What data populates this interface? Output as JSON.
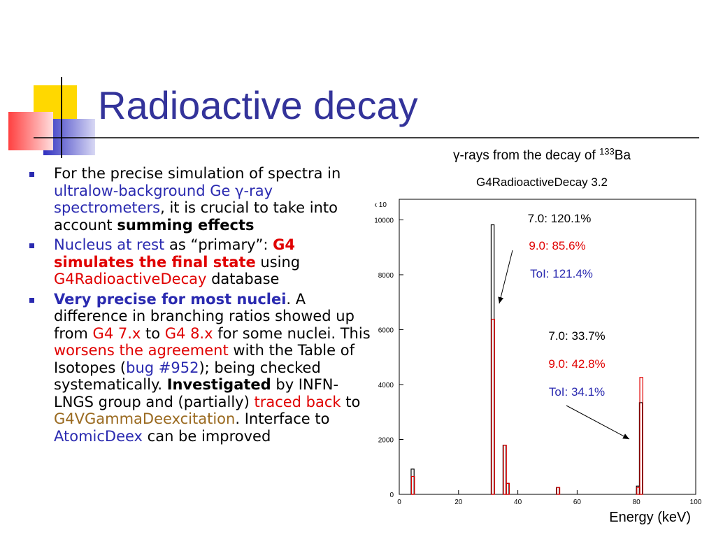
{
  "slide": {
    "title": "Radioactive decay",
    "bullets": [
      [
        {
          "text": "For the precise simulation of spectra in ",
          "style": "plain"
        },
        {
          "text": "ultralow-background Ge γ-ray spectrometers",
          "style": "blue"
        },
        {
          "text": ", it is crucial to take into account ",
          "style": "plain"
        },
        {
          "text": "summing effects",
          "style": "bold"
        }
      ],
      [
        {
          "text": "Nucleus at rest",
          "style": "blue"
        },
        {
          "text": " as “primary”: ",
          "style": "plain"
        },
        {
          "text": "G4 simulates the final state",
          "style": "red-bold"
        },
        {
          "text": " using ",
          "style": "plain"
        },
        {
          "text": "G4RadioactiveDecay",
          "style": "red"
        },
        {
          "text": " database",
          "style": "plain"
        }
      ],
      [
        {
          "text": "Very precise for most nuclei",
          "style": "blue-bold"
        },
        {
          "text": ". A difference in branching ratios showed up from ",
          "style": "plain"
        },
        {
          "text": "G4 7.x",
          "style": "red"
        },
        {
          "text": " to ",
          "style": "plain"
        },
        {
          "text": "G4 8.x",
          "style": "red"
        },
        {
          "text": " for some nuclei. This ",
          "style": "plain"
        },
        {
          "text": "worsens the agreement",
          "style": "red"
        },
        {
          "text": " with the Table of Isotopes (",
          "style": "plain"
        },
        {
          "text": "bug #952",
          "style": "blue"
        },
        {
          "text": "); being checked systematically. ",
          "style": "plain"
        },
        {
          "text": "Investigated",
          "style": "bold"
        },
        {
          "text": " by INFN-LNGS group and (partially) ",
          "style": "plain"
        },
        {
          "text": "traced back",
          "style": "red"
        },
        {
          "text": " to ",
          "style": "plain"
        },
        {
          "text": "G4VGammaDeexcitation",
          "style": "brown"
        },
        {
          "text": ". Interface to ",
          "style": "plain"
        },
        {
          "text": "AtomicDeex",
          "style": "blue"
        },
        {
          "text": " can be improved",
          "style": "plain"
        }
      ]
    ]
  },
  "chart_data": {
    "type": "bar",
    "title": "γ-rays from the decay of",
    "title_mass_number": "133",
    "title_element": "Ba",
    "subtitle": "G4RadioactiveDecay 3.2",
    "x_label": "Energy (keV)",
    "y_multiplier": "x 10",
    "x": [
      4,
      31,
      35,
      36,
      53,
      80,
      81
    ],
    "series": [
      {
        "color": "#000000",
        "values": [
          920,
          9820,
          1790,
          400,
          250,
          300,
          3340
        ]
      },
      {
        "color": "#e00000",
        "values": [
          650,
          6380,
          1790,
          400,
          250,
          250,
          4260
        ]
      }
    ],
    "xlim": [
      0,
      100
    ],
    "xticks": [
      0,
      20,
      40,
      60,
      80,
      100
    ],
    "ylim": [
      0,
      10750
    ],
    "yticks": [
      0,
      2000,
      4000,
      6000,
      8000,
      10000
    ],
    "annotations": [
      {
        "text": "7.0: 120.1%",
        "color": "#000000"
      },
      {
        "text": "9.0: 85.6%",
        "color": "#e00000"
      },
      {
        "text": "ToI: 121.4%",
        "color": "#2a2ab0"
      },
      {
        "text": "7.0: 33.7%",
        "color": "#000000"
      },
      {
        "text": "9.0: 42.8%",
        "color": "#e00000"
      },
      {
        "text": "ToI: 34.1%",
        "color": "#2a2ab0"
      }
    ]
  }
}
